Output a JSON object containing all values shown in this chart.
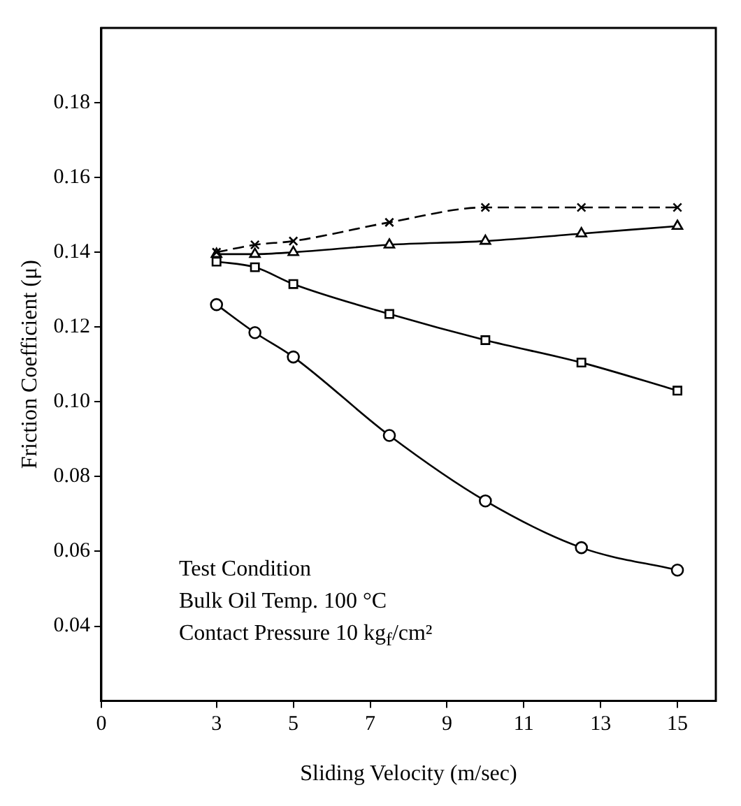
{
  "chart_data": {
    "type": "line",
    "xlabel": "Sliding Velocity (m/sec)",
    "ylabel": "Friction Coefficient (μ)",
    "x": [
      3,
      4,
      5,
      7.5,
      10,
      12.5,
      15
    ],
    "series": [
      {
        "color": "#000000",
        "marker": "cross",
        "line_style": "dashed",
        "values": [
          0.14,
          0.142,
          0.143,
          0.148,
          0.152,
          0.152,
          0.152
        ]
      },
      {
        "color": "#000000",
        "marker": "triangle",
        "values": [
          0.1395,
          0.1395,
          0.14,
          0.142,
          0.143,
          0.145,
          0.147
        ]
      },
      {
        "color": "#000000",
        "marker": "square",
        "values": [
          0.1375,
          0.136,
          0.1315,
          0.1235,
          0.1165,
          0.1105,
          0.103
        ]
      },
      {
        "color": "#000000",
        "marker": "circle",
        "values": [
          0.126,
          0.1185,
          0.112,
          0.091,
          0.0735,
          0.061,
          0.055
        ]
      }
    ],
    "xlim": [
      0,
      16
    ],
    "xticks": [
      0,
      3,
      5,
      7,
      9,
      11,
      13,
      15
    ],
    "ylim": [
      0.02,
      0.2
    ],
    "yticks": [
      {
        "value": 0.04,
        "label": "0.04"
      },
      {
        "value": 0.06,
        "label": "0.06"
      },
      {
        "value": 0.08,
        "label": "0.08"
      },
      {
        "value": 0.1,
        "label": "0.10"
      },
      {
        "value": 0.12,
        "label": "0.12"
      },
      {
        "value": 0.14,
        "label": "0.14"
      },
      {
        "value": 0.16,
        "label": "0.16"
      },
      {
        "value": 0.18,
        "label": "0.18"
      }
    ],
    "grid": false,
    "legend": false,
    "annotations": [
      "Test Condition",
      "Bulk Oil Temp. 100 °C",
      "Contact Pressure 10 kg$_{f}$/cm²"
    ]
  }
}
